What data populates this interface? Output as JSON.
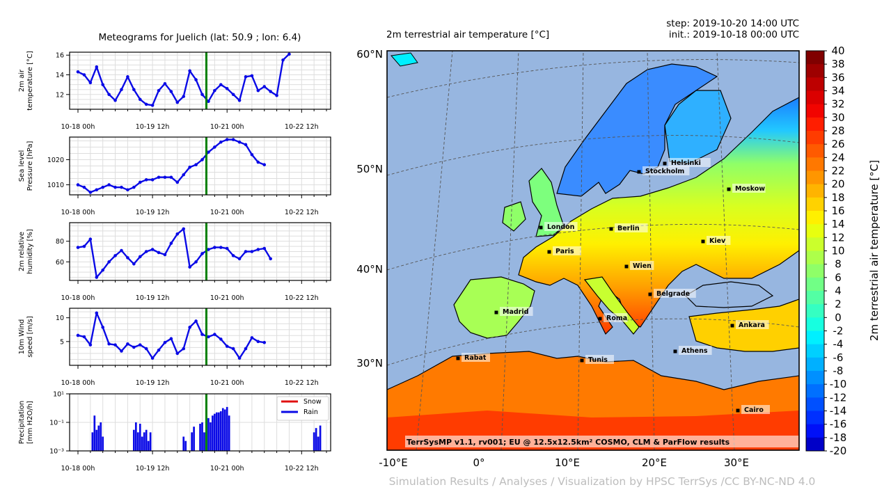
{
  "header": {
    "meteogram_title": "Meteograms for Juelich (lat: 50.9 ; lon: 6.4)",
    "map_title": "2m terrestrial air temperature [°C]",
    "step": "step: 2019-10-20 14:00 UTC",
    "init": "init.: 2019-10-18 00:00 UTC"
  },
  "footer": {
    "credit": "Simulation Results / Analyses / Visualization by HPSC TerrSys /CC BY-NC-ND 4.0",
    "map_note": "TerrSysMP v1.1, rv001; EU @ 12.5x12.5km² COSMO, CLM & ParFlow results"
  },
  "colors": {
    "series": "#0a0ae6",
    "marker": "#008000",
    "snow": "#e01010",
    "rain": "#0a0ae6",
    "sea": "#97b6e0",
    "grid": "#dddddd"
  },
  "chart_data": [
    {
      "type": "line",
      "id": "temp",
      "ylabel": [
        "2m air",
        "temperature [°C]"
      ],
      "x_hours": [
        0,
        3,
        6,
        9,
        12,
        15,
        18,
        21,
        24,
        27,
        30,
        33,
        36,
        39,
        42,
        45,
        48,
        51,
        54,
        57,
        60,
        63,
        66,
        69,
        72,
        75,
        78,
        81,
        84,
        87,
        90,
        93,
        96,
        99,
        102,
        105,
        108,
        111
      ],
      "values": [
        14.3,
        14.0,
        13.2,
        14.8,
        13.0,
        12.0,
        11.4,
        12.5,
        13.8,
        12.5,
        11.5,
        11.0,
        10.9,
        12.4,
        13.1,
        12.3,
        11.2,
        11.8,
        14.4,
        13.5,
        12.0,
        11.3,
        12.4,
        13.0,
        12.6,
        12.0,
        11.4,
        13.8,
        13.9,
        12.4,
        12.8,
        12.3,
        11.9,
        15.5,
        16.1,
        null,
        null,
        null
      ],
      "ylim": [
        10.5,
        16.3
      ],
      "yticks": [
        12,
        14,
        16
      ],
      "xtick_hours": [
        0,
        36,
        72,
        108
      ],
      "xtick_labels": [
        "10-18 00h",
        "10-19 12h",
        "10-21 00h",
        "10-22 12h"
      ],
      "marker_hour": 62
    },
    {
      "type": "line",
      "id": "pressure",
      "ylabel": [
        "Sea level",
        "Pressure [hPa]"
      ],
      "x_hours": [
        0,
        3,
        6,
        9,
        12,
        15,
        18,
        21,
        24,
        27,
        30,
        33,
        36,
        39,
        42,
        45,
        48,
        51,
        54,
        57,
        60,
        63,
        66,
        69,
        72,
        75,
        78,
        81,
        84,
        87,
        90,
        93,
        96,
        99,
        102,
        105,
        108,
        111
      ],
      "values": [
        1010,
        1009,
        1007,
        1008,
        1009,
        1010,
        1009,
        1009,
        1008,
        1009,
        1011,
        1012,
        1012,
        1013,
        1013,
        1013,
        1011,
        1014,
        1017,
        1018,
        1020,
        1023,
        1025,
        1027,
        1028,
        1028,
        1027,
        1026,
        1022,
        1019,
        1018,
        null,
        null,
        null,
        null,
        null,
        null,
        null
      ],
      "ylim": [
        1006,
        1029
      ],
      "yticks": [
        1010,
        1020
      ],
      "xtick_hours": [
        0,
        36,
        72,
        108
      ],
      "xtick_labels": [
        "10-18 00h",
        "10-19 12h",
        "10-21 00h",
        "10-22 12h"
      ],
      "marker_hour": 62
    },
    {
      "type": "line",
      "id": "humidity",
      "ylabel": [
        "2m relative",
        "humidity [%]"
      ],
      "x_hours": [
        0,
        3,
        6,
        9,
        12,
        15,
        18,
        21,
        24,
        27,
        30,
        33,
        36,
        39,
        42,
        45,
        48,
        51,
        54,
        57,
        60,
        63,
        66,
        69,
        72,
        75,
        78,
        81,
        84,
        87,
        90,
        93,
        96,
        99,
        102,
        105,
        108,
        111
      ],
      "values": [
        74,
        75,
        82,
        45,
        52,
        60,
        66,
        71,
        64,
        58,
        65,
        70,
        72,
        69,
        67,
        78,
        87,
        92,
        55,
        60,
        68,
        72,
        74,
        74,
        73,
        66,
        63,
        70,
        70,
        72,
        73,
        63,
        null,
        null,
        null,
        null,
        null,
        null
      ],
      "ylim": [
        42,
        98
      ],
      "yticks": [
        60,
        80
      ],
      "xtick_hours": [
        0,
        36,
        72,
        108
      ],
      "xtick_labels": [
        "10-18 00h",
        "10-19 12h",
        "10-21 00h",
        "10-22 12h"
      ],
      "marker_hour": 62
    },
    {
      "type": "line",
      "id": "wind",
      "ylabel": [
        "10m Wind",
        "speed [m/s]"
      ],
      "x_hours": [
        0,
        3,
        6,
        9,
        12,
        15,
        18,
        21,
        24,
        27,
        30,
        33,
        36,
        39,
        42,
        45,
        48,
        51,
        54,
        57,
        60,
        63,
        66,
        69,
        72,
        75,
        78,
        81,
        84,
        87,
        90,
        93,
        96,
        99,
        102,
        105,
        108,
        111
      ],
      "values": [
        6.3,
        6.0,
        4.3,
        11.0,
        8.0,
        4.5,
        4.3,
        3.0,
        4.5,
        3.8,
        4.3,
        3.5,
        1.5,
        3.2,
        4.8,
        5.6,
        2.5,
        3.5,
        8.0,
        9.3,
        6.5,
        6.0,
        6.5,
        5.5,
        4.0,
        3.5,
        1.5,
        3.5,
        5.8,
        5.0,
        4.8,
        null,
        null,
        null,
        null,
        null,
        null,
        null
      ],
      "ylim": [
        0,
        12
      ],
      "yticks": [
        5,
        10
      ],
      "xtick_hours": [
        0,
        36,
        72,
        108
      ],
      "xtick_labels": [
        "10-18 00h",
        "10-19 12h",
        "10-21 00h",
        "10-22 12h"
      ],
      "marker_hour": 62
    },
    {
      "type": "bar",
      "id": "precip",
      "ylabel": [
        "Precipitation",
        "[mm H2O/h]"
      ],
      "yscale": "log",
      "ytick_labels": [
        "10¹",
        "10⁻¹",
        "10⁻³"
      ],
      "legend": [
        "Snow",
        "Rain"
      ],
      "rain_hours": [
        7,
        8,
        9,
        10,
        11,
        12,
        27,
        28,
        29,
        30,
        31,
        32,
        33,
        34,
        35,
        51,
        52,
        55,
        56,
        59,
        60,
        61,
        63,
        64,
        65,
        66,
        67,
        68,
        69,
        70,
        71,
        72,
        73,
        114,
        115,
        116,
        117
      ],
      "rain_values": [
        0.02,
        0.3,
        0.03,
        0.06,
        0.1,
        0.01,
        0.03,
        0.1,
        0.02,
        0.08,
        0.01,
        0.02,
        0.03,
        0.005,
        0.02,
        0.01,
        0.005,
        0.02,
        0.05,
        0.08,
        0.1,
        0.02,
        0.2,
        0.1,
        0.3,
        0.4,
        0.5,
        0.5,
        0.6,
        1.0,
        0.8,
        1.2,
        0.3,
        0.02,
        0.04,
        0.01,
        0.06
      ],
      "ylim_log": [
        -3,
        1
      ],
      "xtick_hours": [
        0,
        36,
        72,
        108
      ],
      "xtick_labels": [
        "10-18 00h",
        "10-19 12h",
        "10-21 00h",
        "10-22 12h"
      ],
      "marker_hour": 62
    },
    {
      "type": "map",
      "id": "europe",
      "lat_labels": [
        "60°N",
        "50°N",
        "40°N",
        "30°N"
      ],
      "lon_labels": [
        "-10°E",
        "0°",
        "10°E",
        "20°E",
        "30°E"
      ],
      "cities": [
        "Helsinki",
        "Stockholm",
        "Moskow",
        "London",
        "Berlin",
        "Kiev",
        "Paris",
        "Wien",
        "Belgrade",
        "Madrid",
        "Roma",
        "Ankara",
        "Athens",
        "Rabat",
        "Tunis",
        "Cairo"
      ]
    },
    {
      "type": "colorbar",
      "label": "2m terrestrial air temperature [°C]",
      "tick_labels": [
        "40",
        "38",
        "36",
        "34",
        "32",
        "30",
        "28",
        "26",
        "24",
        "22",
        "20",
        "18",
        "16",
        "14",
        "12",
        "10",
        "8",
        "6",
        "4",
        "2",
        "0",
        "-2",
        "-4",
        "-6",
        "-8",
        "-10",
        "-12",
        "-14",
        "-16",
        "-18",
        "-20"
      ],
      "colors": [
        "#800000",
        "#9e0000",
        "#bd0000",
        "#db0000",
        "#f20400",
        "#ff1e00",
        "#ff3c00",
        "#ff5a00",
        "#ff7800",
        "#ff9600",
        "#ffb400",
        "#ffd200",
        "#fff000",
        "#e8ff0f",
        "#cbff2c",
        "#adff4a",
        "#8fff68",
        "#71ff86",
        "#53ffa4",
        "#35ffc2",
        "#17ffe0",
        "#00f0ff",
        "#00d0ff",
        "#00b0ff",
        "#0090ff",
        "#0070ff",
        "#0050ff",
        "#0030ff",
        "#0010f8",
        "#0000c8"
      ]
    }
  ]
}
